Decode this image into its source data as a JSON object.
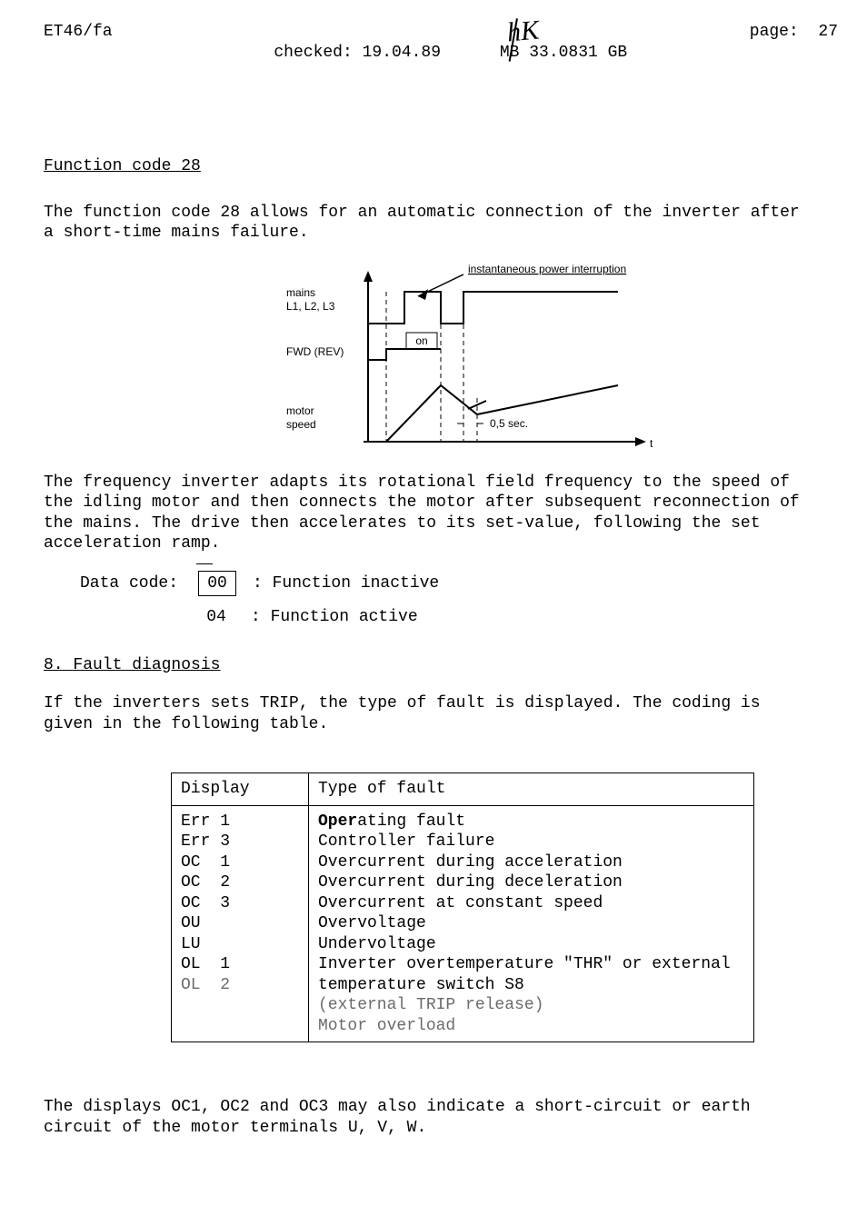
{
  "header": {
    "left": "ET46/fa",
    "center": "checked: 19.04.89      MB 33.0831 GB",
    "right": "page:  27",
    "initials": "hK"
  },
  "section1": {
    "title": "Function code 28",
    "para1": "The function code 28 allows for an automatic connection of the inverter after a short-time mains failure.",
    "para2": "The frequency inverter adapts its rotational field frequency to the speed of the idling motor and then connects the motor after subsequent reconnection of the mains. The drive then accelerates to its set-value, following the set acceleration ramp."
  },
  "diagram": {
    "labels": {
      "instantaneous": "instantaneous power interruption",
      "mains": "mains",
      "mains_sub": "L1, L2, L3",
      "fwd": "FWD (REV)",
      "on": "on",
      "motor": "motor",
      "motor_sub": "speed",
      "half": "0,5 sec.",
      "t": "t"
    },
    "style": {
      "font_family": "Arial, Helvetica, sans-serif",
      "label_fontsize": 12,
      "stroke": "#000",
      "dash": "5,4"
    }
  },
  "data_code": {
    "label": "Data code:",
    "rows": [
      {
        "code": "00",
        "boxed": true,
        "desc": ": Function inactive"
      },
      {
        "code": "04",
        "boxed": false,
        "desc": ": Function active"
      }
    ]
  },
  "section2": {
    "prefix": "8. ",
    "title": "Fault diagnosis",
    "para": "If the inverters sets TRIP, the type of fault is displayed. The coding is given in the following table."
  },
  "fault_table": {
    "columns": [
      "Display",
      "Type of fault"
    ],
    "rows": [
      {
        "display": "Err 1",
        "fault_pre": "Oper",
        "fault_rest": "ating fault",
        "bold": true
      },
      {
        "display": "Err 3",
        "fault": "Controller failure"
      },
      {
        "display": "OC  1",
        "fault": "Overcurrent during acceleration"
      },
      {
        "display": "OC  2",
        "fault": "Overcurrent during deceleration"
      },
      {
        "display": "OC  3",
        "fault": "Overcurrent at constant speed"
      },
      {
        "display": "OU",
        "fault": "Overvoltage"
      },
      {
        "display": "LU",
        "fault": "Undervoltage"
      },
      {
        "display": "OL  1",
        "fault": "Inverter overtemperature \"THR\" or external temperature switch S8 (external TRIP release)",
        "faded_tail": "(external TRIP release)"
      },
      {
        "display": "OL  2",
        "fault": "Motor overload",
        "faded": true
      }
    ]
  },
  "post_para": "The displays OC1, OC2 and OC3 may also indicate a short-circuit or earth circuit of the motor terminals U, V, W."
}
